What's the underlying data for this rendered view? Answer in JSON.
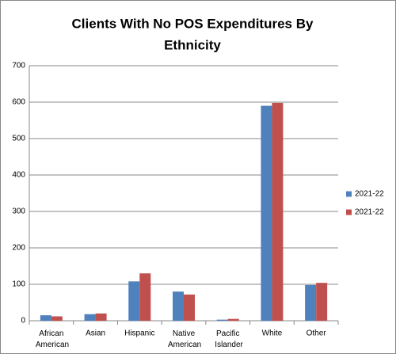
{
  "chart_data": {
    "type": "bar",
    "title_lines": [
      "Clients With No POS Expenditures By",
      "Ethnicity"
    ],
    "categories": [
      "African American",
      "Asian",
      "Hispanic",
      "Native American",
      "Pacific Islander",
      "White",
      "Other"
    ],
    "series": [
      {
        "name": "2021-22",
        "color": "#4f81bd",
        "values": [
          15,
          18,
          108,
          80,
          3,
          590,
          98
        ]
      },
      {
        "name": "2021-22",
        "color": "#c0504d",
        "values": [
          12,
          20,
          130,
          72,
          5,
          598,
          104
        ]
      }
    ],
    "ylim": [
      0,
      700
    ],
    "yticks": [
      0,
      100,
      200,
      300,
      400,
      500,
      600,
      700
    ],
    "grid": true,
    "legend": "right"
  }
}
